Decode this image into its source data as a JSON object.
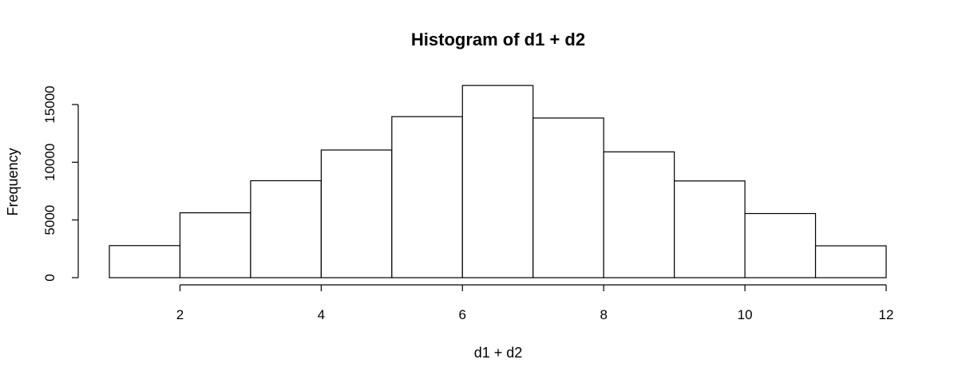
{
  "chart_data": {
    "type": "bar",
    "title": "Histogram of d1 + d2",
    "xlabel": "d1 + d2",
    "ylabel": "Frequency",
    "bins": [
      {
        "start": 1,
        "end": 2,
        "value": 2780
      },
      {
        "start": 2,
        "end": 3,
        "value": 5620
      },
      {
        "start": 3,
        "end": 4,
        "value": 8400
      },
      {
        "start": 4,
        "end": 5,
        "value": 11060
      },
      {
        "start": 5,
        "end": 6,
        "value": 13950
      },
      {
        "start": 6,
        "end": 7,
        "value": 16650
      },
      {
        "start": 7,
        "end": 8,
        "value": 13830
      },
      {
        "start": 8,
        "end": 9,
        "value": 10900
      },
      {
        "start": 9,
        "end": 10,
        "value": 8380
      },
      {
        "start": 10,
        "end": 11,
        "value": 5560
      },
      {
        "start": 11,
        "end": 12,
        "value": 2760
      }
    ],
    "x_ticks": [
      2,
      4,
      6,
      8,
      10,
      12
    ],
    "y_ticks": [
      0,
      5000,
      10000,
      15000
    ],
    "xlim": [
      1,
      12
    ],
    "ylim": [
      0,
      15000
    ],
    "grid": false,
    "legend": "none"
  }
}
